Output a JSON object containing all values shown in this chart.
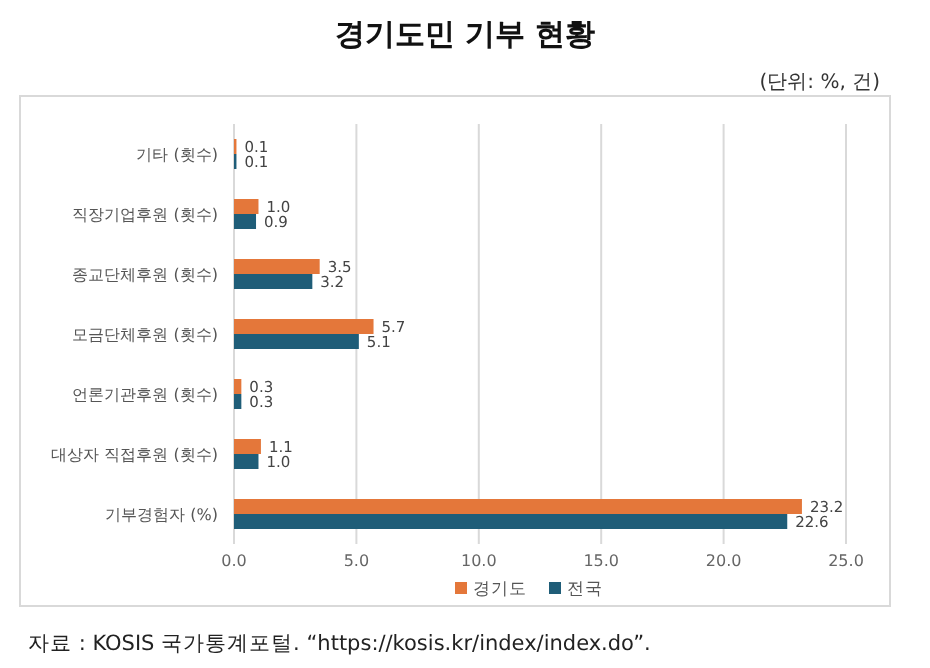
{
  "chart_data": {
    "type": "bar",
    "orientation": "horizontal",
    "title": "경기도민 기부 현황",
    "annotations": [
      "(단위: %, 건)",
      "자료 : KOSIS 국가통계포털. “https://kosis.kr/index/index.do”."
    ],
    "categories": [
      "기타 (횟수)",
      "직장기업후원 (횟수)",
      "종교단체후원 (횟수)",
      "모금단체후원 (횟수)",
      "언론기관후원 (횟수)",
      "대상자 직접후원 (횟수)",
      "기부경험자 (%)"
    ],
    "series": [
      {
        "name": "경기도",
        "color": "#e4773a",
        "values": [
          0.1,
          1.0,
          3.5,
          5.7,
          0.3,
          1.1,
          23.2
        ],
        "value_labels": [
          "0.1",
          "1.0",
          "3.5",
          "5.7",
          "0.3",
          "1.1",
          "23.2"
        ]
      },
      {
        "name": "전국",
        "color": "#1f5d78",
        "values": [
          0.1,
          0.9,
          3.2,
          5.1,
          0.3,
          1.0,
          22.6
        ],
        "value_labels": [
          "0.1",
          "0.9",
          "3.2",
          "5.1",
          "0.3",
          "1.0",
          "22.6"
        ]
      }
    ],
    "xlim": [
      0,
      25
    ],
    "xticks": [
      {
        "value": 0,
        "label": "0.0"
      },
      {
        "value": 5,
        "label": "5.0"
      },
      {
        "value": 10,
        "label": "10.0"
      },
      {
        "value": 15,
        "label": "15.0"
      },
      {
        "value": 20,
        "label": "20.0"
      },
      {
        "value": 25,
        "label": "25.0"
      }
    ],
    "grid": "x",
    "legend": "bottom"
  }
}
